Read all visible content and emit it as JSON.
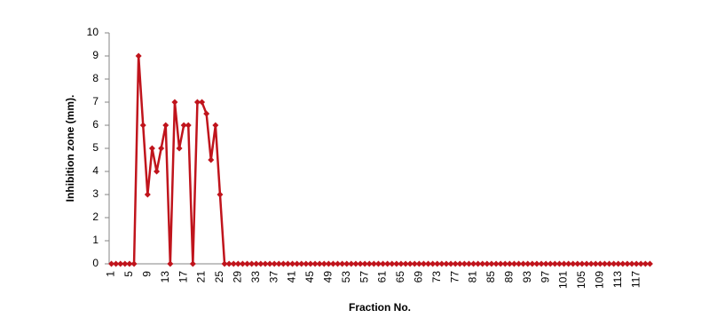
{
  "chart_data": {
    "type": "line",
    "xlabel": "Fraction No.",
    "ylabel": "Inhibition zone  (mm).",
    "categories": [
      "1",
      null,
      null,
      null,
      "5",
      null,
      null,
      null,
      "9",
      null,
      null,
      null,
      "13",
      null,
      null,
      null,
      "17",
      null,
      null,
      null,
      "21",
      null,
      null,
      null,
      "25",
      null,
      null,
      null,
      "29",
      null,
      null,
      null,
      "33",
      null,
      null,
      null,
      "37",
      null,
      null,
      null,
      "41",
      null,
      null,
      null,
      "45",
      null,
      null,
      null,
      "49",
      null,
      null,
      null,
      "53",
      null,
      null,
      null,
      "57",
      null,
      null,
      null,
      "61",
      null,
      null,
      null,
      "65",
      null,
      null,
      null,
      "69",
      null,
      null,
      null,
      "73",
      null,
      null,
      null,
      "77",
      null,
      null,
      null,
      "81",
      null,
      null,
      null,
      "85",
      null,
      null,
      null,
      "89",
      null,
      null,
      null,
      "93",
      null,
      null,
      null,
      "97",
      null,
      null,
      null,
      "101",
      null,
      null,
      null,
      "105",
      null,
      null,
      null,
      "109",
      null,
      null,
      null,
      "113",
      null,
      null,
      null,
      "117",
      null,
      null,
      null
    ],
    "values": [
      0,
      0,
      0,
      0,
      0,
      0,
      9,
      6,
      3,
      5,
      4,
      5,
      6,
      0,
      7,
      5,
      6,
      6,
      0,
      7,
      7,
      6.5,
      4.5,
      6,
      3,
      0,
      0,
      0,
      0,
      0,
      0,
      0,
      0,
      0,
      0,
      0,
      0,
      0,
      0,
      0,
      0,
      0,
      0,
      0,
      0,
      0,
      0,
      0,
      0,
      0,
      0,
      0,
      0,
      0,
      0,
      0,
      0,
      0,
      0,
      0,
      0,
      0,
      0,
      0,
      0,
      0,
      0,
      0,
      0,
      0,
      0,
      0,
      0,
      0,
      0,
      0,
      0,
      0,
      0,
      0,
      0,
      0,
      0,
      0,
      0,
      0,
      0,
      0,
      0,
      0,
      0,
      0,
      0,
      0,
      0,
      0,
      0,
      0,
      0,
      0,
      0,
      0,
      0,
      0,
      0,
      0,
      0,
      0,
      0,
      0,
      0,
      0,
      0,
      0,
      0,
      0,
      0,
      0,
      0,
      0
    ],
    "color": "#c0141c",
    "ylim": [
      0,
      10
    ],
    "yticks": [
      0,
      1,
      2,
      3,
      4,
      5,
      6,
      7,
      8,
      9,
      10
    ],
    "grid": false
  }
}
